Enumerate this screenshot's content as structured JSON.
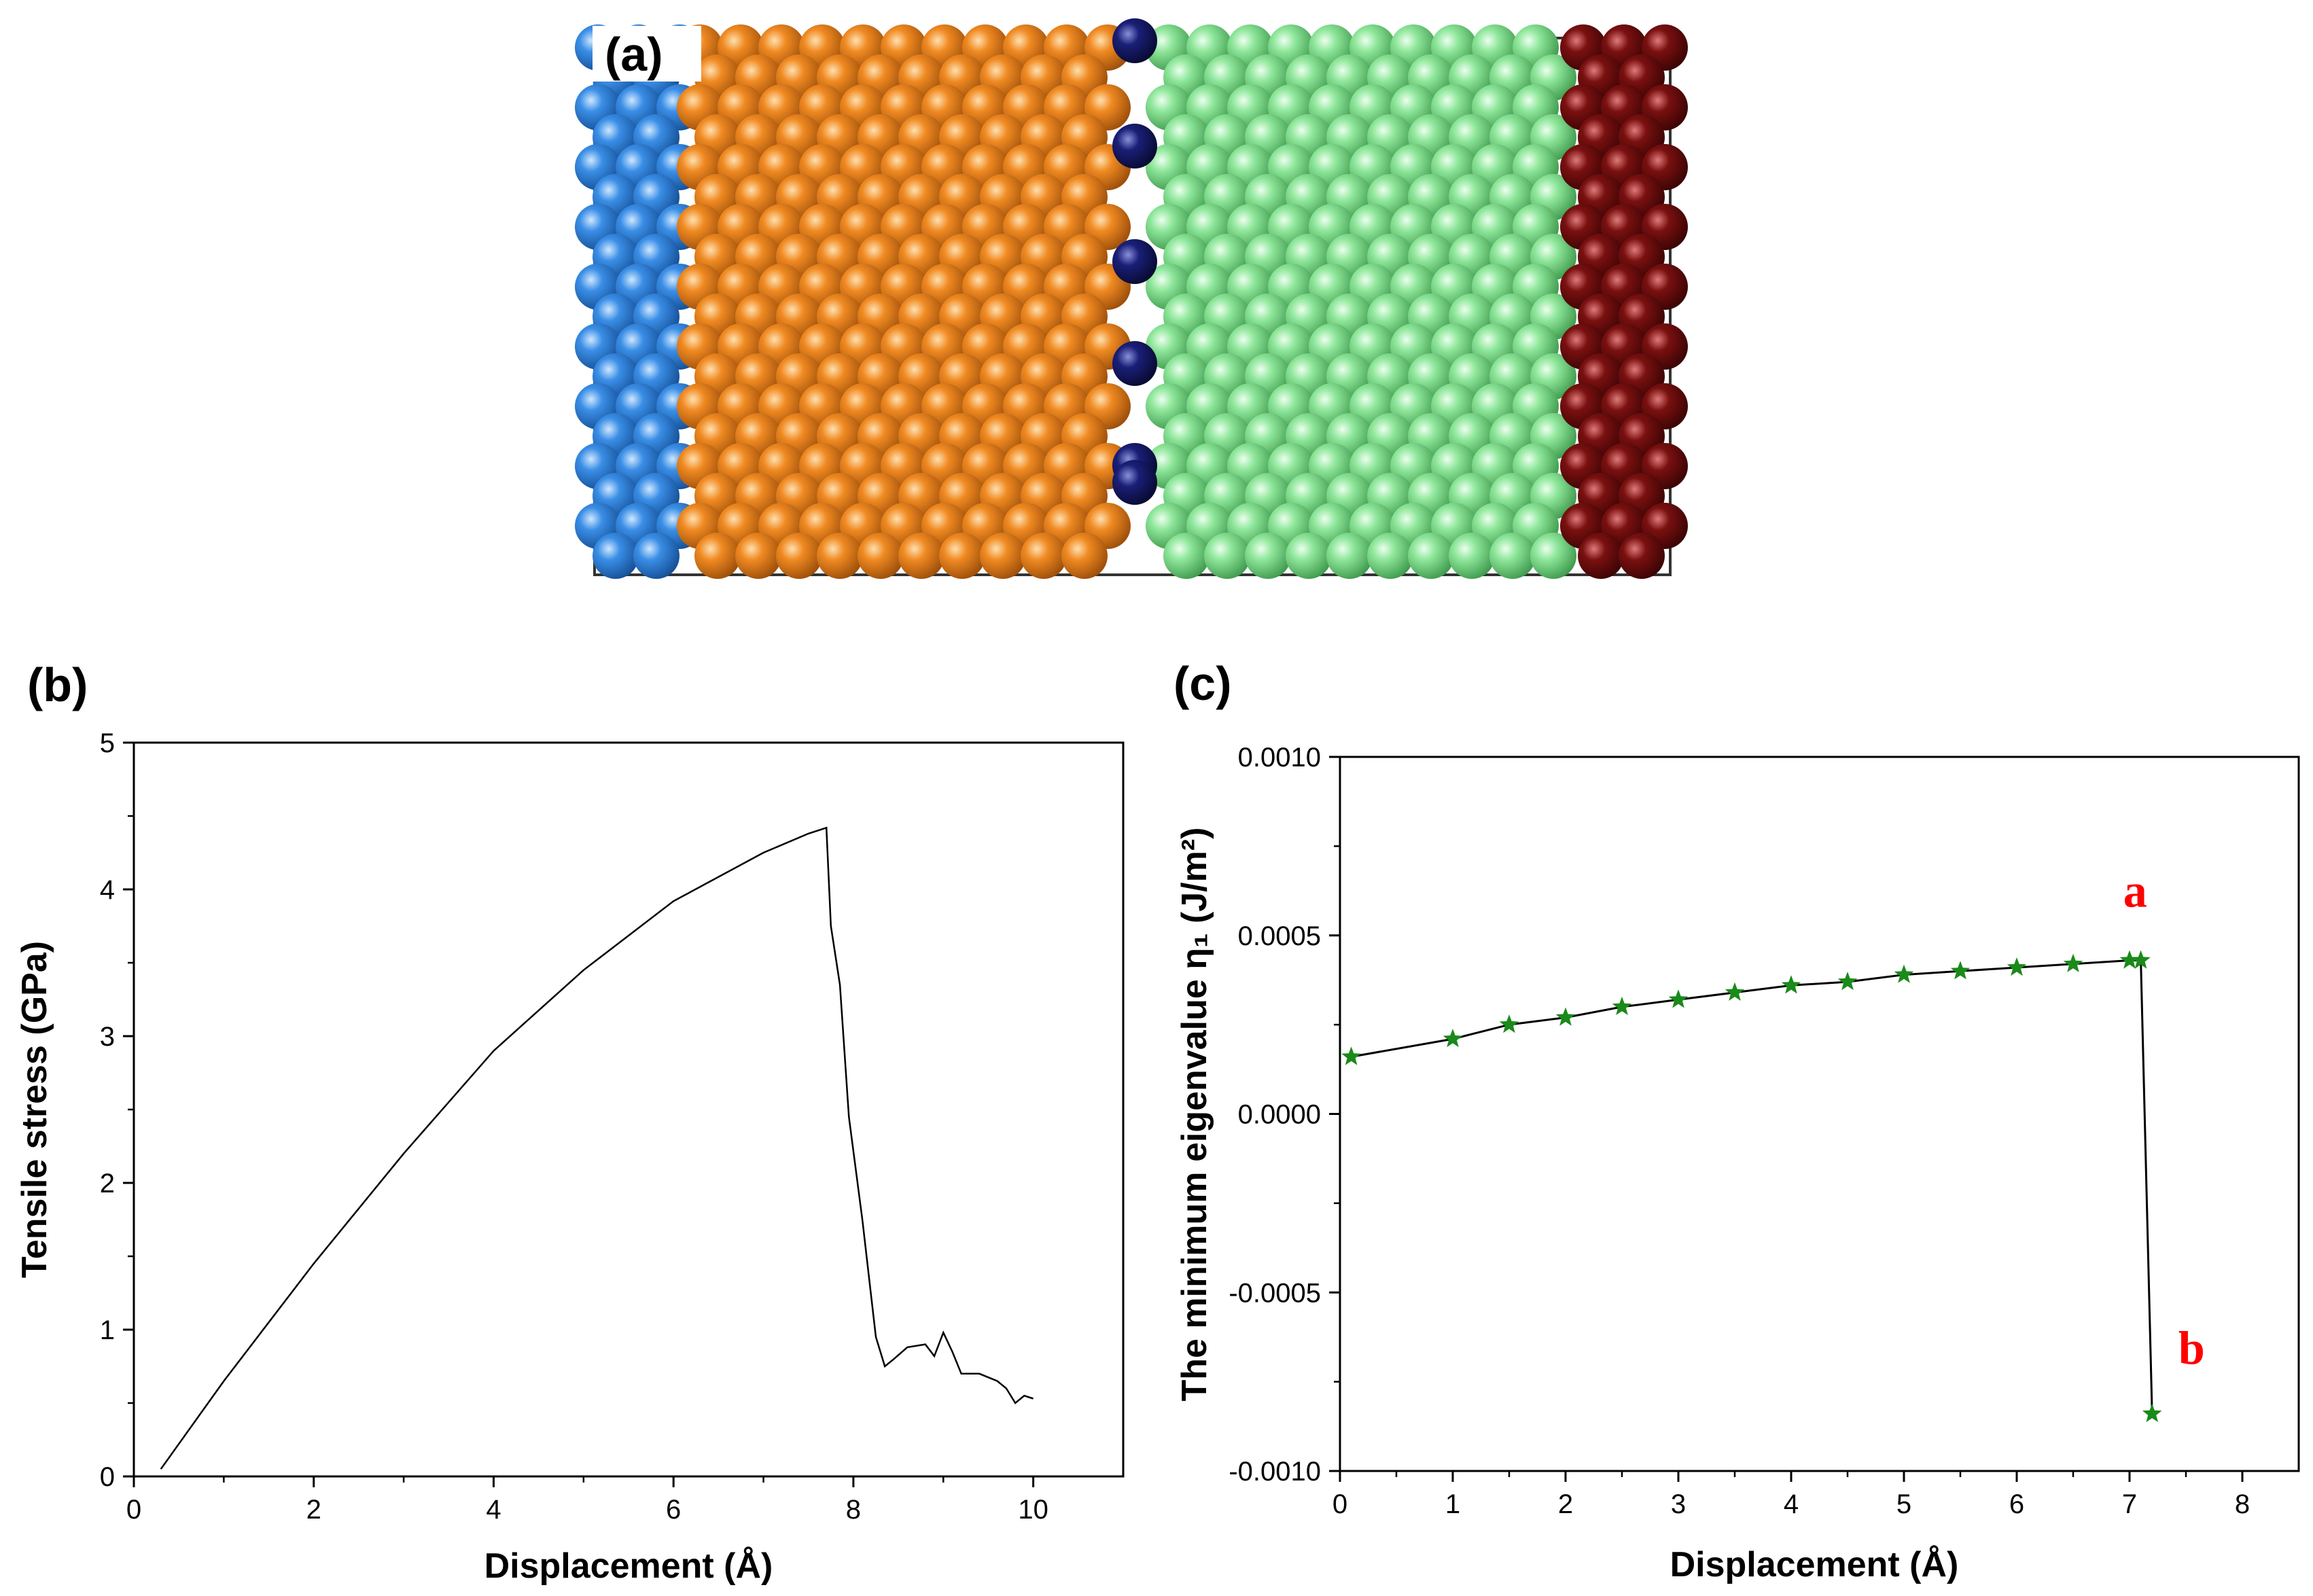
{
  "figure": {
    "panel_labels": {
      "a": "(a)",
      "b": "(b)",
      "c": "(c)"
    },
    "atom_colors": {
      "blue": "#3a8ee6",
      "orange": "#f08a22",
      "dark_blue": "#1a1f78",
      "green": "#8ee69a",
      "dark_red": "#7a1010"
    },
    "colors": {
      "curve_b": "#000000",
      "curve_c": "#000000",
      "marker_c": "#1a8a1a",
      "annotation": "#ff0000"
    }
  },
  "chart_data": [
    {
      "id": "b",
      "type": "line",
      "title": "",
      "xlabel": "Displacement (Å)",
      "ylabel": "Tensile stress (GPa)",
      "xlim": [
        0,
        11
      ],
      "ylim": [
        0,
        5
      ],
      "xticks": [
        0,
        2,
        4,
        6,
        8,
        10
      ],
      "xtick_labels": [
        "0",
        "2",
        "4",
        "6",
        "8",
        "10"
      ],
      "yticks": [
        0,
        1,
        2,
        3,
        4,
        5
      ],
      "ytick_labels": [
        "0",
        "1",
        "2",
        "3",
        "4",
        "5"
      ],
      "grid": false,
      "series": [
        {
          "name": "Tensile stress",
          "x": [
            0.3,
            1.0,
            2.0,
            3.0,
            4.0,
            5.0,
            6.0,
            7.0,
            7.5,
            7.7,
            7.75,
            7.85,
            7.95,
            8.1,
            8.25,
            8.35,
            8.45,
            8.6,
            8.8,
            8.9,
            9.0,
            9.1,
            9.2,
            9.4,
            9.6,
            9.7,
            9.8,
            9.9,
            10.0
          ],
          "y": [
            0.05,
            0.65,
            1.45,
            2.2,
            2.9,
            3.45,
            3.92,
            4.25,
            4.38,
            4.42,
            3.75,
            3.35,
            2.45,
            1.75,
            0.95,
            0.75,
            0.8,
            0.88,
            0.9,
            0.82,
            0.98,
            0.85,
            0.7,
            0.7,
            0.65,
            0.6,
            0.5,
            0.55,
            0.53
          ]
        }
      ]
    },
    {
      "id": "c",
      "type": "line",
      "title": "",
      "xlabel": "Displacement (Å)",
      "ylabel": "The minimum eigenvalue η₁ (J/m²)",
      "xlim": [
        0,
        8.5
      ],
      "ylim": [
        -0.001,
        0.001
      ],
      "xticks": [
        0,
        1,
        2,
        3,
        4,
        5,
        6,
        7,
        8
      ],
      "xtick_labels": [
        "0",
        "1",
        "2",
        "3",
        "4",
        "5",
        "6",
        "7",
        "8"
      ],
      "yticks": [
        -0.001,
        -0.0005,
        0.0,
        0.0005,
        0.001
      ],
      "ytick_labels": [
        "-0.0010",
        "-0.0005",
        "0.0000",
        "0.0005",
        "0.0010"
      ],
      "grid": false,
      "series": [
        {
          "name": "Minimum eigenvalue",
          "marker": "star",
          "x": [
            0.1,
            1.0,
            1.5,
            2.0,
            2.5,
            3.0,
            3.5,
            4.0,
            4.5,
            5.0,
            5.5,
            6.0,
            6.5,
            7.0,
            7.1,
            7.2
          ],
          "y": [
            0.00016,
            0.00021,
            0.00025,
            0.00027,
            0.0003,
            0.00032,
            0.00034,
            0.00036,
            0.00037,
            0.00039,
            0.0004,
            0.00041,
            0.00042,
            0.00043,
            0.00043,
            -0.00084
          ]
        }
      ],
      "annotations": [
        {
          "text": "a",
          "x": 7.05,
          "y": 0.00058
        },
        {
          "text": "b",
          "x": 7.55,
          "y": -0.0007
        }
      ]
    }
  ]
}
